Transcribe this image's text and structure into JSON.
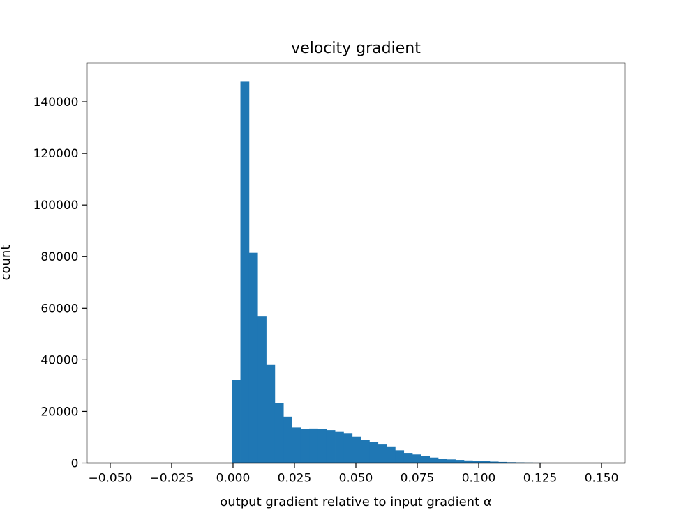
{
  "chart_data": {
    "type": "bar",
    "title": "velocity gradient",
    "xlabel": "output gradient relative to input gradient α",
    "ylabel": "count",
    "xlim": [
      -0.0595,
      0.1595
    ],
    "ylim": [
      0,
      155000
    ],
    "grid": false,
    "bar_color": "#1f77b4",
    "x_ticks": [
      {
        "value": -0.05,
        "label": "−0.050"
      },
      {
        "value": -0.025,
        "label": "−0.025"
      },
      {
        "value": 0.0,
        "label": "0.000"
      },
      {
        "value": 0.025,
        "label": "0.025"
      },
      {
        "value": 0.05,
        "label": "0.050"
      },
      {
        "value": 0.075,
        "label": "0.075"
      },
      {
        "value": 0.1,
        "label": "0.100"
      },
      {
        "value": 0.125,
        "label": "0.125"
      },
      {
        "value": 0.15,
        "label": "0.150"
      }
    ],
    "y_ticks": [
      {
        "value": 0,
        "label": "0"
      },
      {
        "value": 20000,
        "label": "20000"
      },
      {
        "value": 40000,
        "label": "40000"
      },
      {
        "value": 60000,
        "label": "60000"
      },
      {
        "value": 80000,
        "label": "80000"
      },
      {
        "value": 100000,
        "label": "100000"
      },
      {
        "value": 120000,
        "label": "120000"
      },
      {
        "value": 140000,
        "label": "140000"
      }
    ],
    "bin_start": -0.0005,
    "bin_width": 0.0035,
    "values": [
      32000,
      148000,
      81500,
      56800,
      38000,
      23200,
      18000,
      13800,
      13200,
      13400,
      13300,
      12800,
      12100,
      11400,
      10200,
      9000,
      8000,
      7400,
      6400,
      4900,
      3900,
      3300,
      2600,
      2100,
      1700,
      1400,
      1200,
      1000,
      850,
      700,
      550,
      430,
      330,
      260,
      200,
      160,
      110,
      80,
      50,
      30
    ]
  }
}
